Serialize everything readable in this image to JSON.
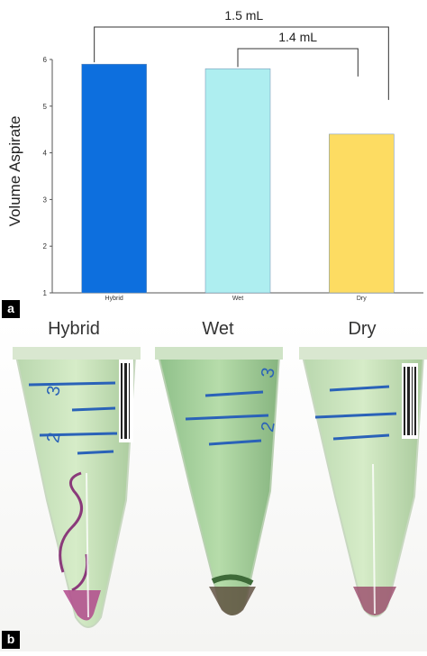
{
  "chart_data": {
    "type": "bar",
    "categories": [
      "Hybrid",
      "Wet",
      "Dry"
    ],
    "values": [
      5.9,
      5.8,
      4.4
    ],
    "ylabel": "Volume Aspirate",
    "ylim": [
      1,
      6
    ],
    "yticks": [
      "1",
      "2",
      "3",
      "4",
      "5",
      "6"
    ],
    "bar_colors": [
      "#0d6fde",
      "#aeeef0",
      "#fddc62"
    ],
    "grid": false,
    "brackets": [
      {
        "from": "Hybrid",
        "to": "Dry",
        "label": "1.5 mL"
      },
      {
        "from": "Wet",
        "to": "Dry",
        "label": "1.4 mL"
      }
    ]
  },
  "panels": {
    "a_label": "a",
    "b_label": "b"
  },
  "photo": {
    "titles": [
      "Hybrid",
      "Wet",
      "Dry"
    ],
    "tube_labels": {
      "hybrid": [
        "3",
        "2"
      ],
      "wet": [
        "3",
        "2"
      ]
    }
  }
}
